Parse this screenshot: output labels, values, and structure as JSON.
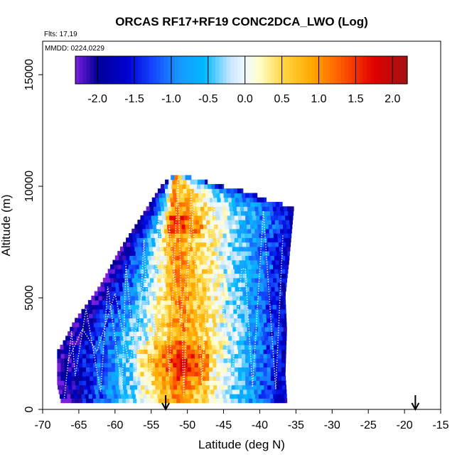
{
  "chart_data": {
    "type": "heatmap",
    "title": "ORCAS RF17+RF19 CONC2DCA_LWO (Log)",
    "flights_note": "Flts: 17,19",
    "dates_note": "MMDD: 0224,0229",
    "xlabel": "Latitude (deg N)",
    "ylabel": "Altitude (m)",
    "xlim": [
      -70,
      -15
    ],
    "ylim": [
      0,
      16500
    ],
    "x_ticks": [
      -70,
      -65,
      -60,
      -55,
      -50,
      -45,
      -40,
      -35,
      -30,
      -25,
      -20,
      -15
    ],
    "x_tick_labels": [
      "-70",
      "-65",
      "-60",
      "-55",
      "-50",
      "-45",
      "-40",
      "-35",
      "-30",
      "-25",
      "-20",
      "-15"
    ],
    "y_ticks": [
      0,
      5000,
      10000,
      15000
    ],
    "y_tick_labels": [
      "0",
      "5000",
      "10000",
      "15000"
    ],
    "colorbar": {
      "range": [
        -2.3,
        2.2
      ],
      "ticks": [
        -2.0,
        -1.5,
        -1.0,
        -0.5,
        0.0,
        0.5,
        1.0,
        1.5,
        2.0
      ],
      "tick_labels": [
        "-2.0",
        "-1.5",
        "-1.0",
        "-0.5",
        "0.0",
        "0.5",
        "1.0",
        "1.5",
        "2.0"
      ],
      "colors": [
        "#7a1fe0",
        "#0000a0",
        "#0000cc",
        "#1a40ff",
        "#1a9cff",
        "#00b8ff",
        "#d8ecff",
        "#ffffd0",
        "#ffd040",
        "#ffaa00",
        "#ff5500",
        "#e00000",
        "#a01010"
      ]
    },
    "arrows_latitude": [
      -53.0,
      -18.5
    ],
    "grid": false
  }
}
